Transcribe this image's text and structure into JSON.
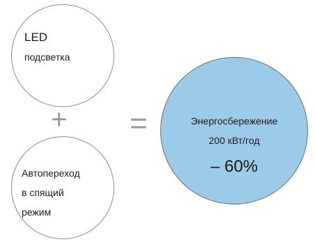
{
  "circles": {
    "led": {
      "line1": "LED",
      "line2": "подсветка"
    },
    "sleep": {
      "line1": "Автопереход",
      "line2": "в спящий",
      "line3": "режим"
    },
    "result": {
      "line1": "Энергосбережение",
      "line2": "200 кВт/год",
      "line3": "– 60%",
      "fill_color": "#9ccbea"
    }
  },
  "operators": {
    "plus": "+",
    "equals": "="
  }
}
